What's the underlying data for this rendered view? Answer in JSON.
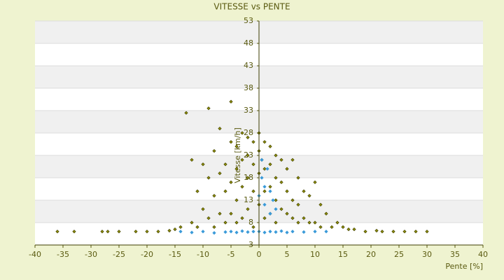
{
  "chart_data": {
    "type": "scatter",
    "title": "VITESSE vs PENTE",
    "x_label": "Pente [%]",
    "y_label": "Vitesse [km/h]",
    "xlim": [
      -40,
      40
    ],
    "xticks": [
      -40,
      -35,
      -30,
      -25,
      -20,
      -15,
      -10,
      -5,
      0,
      5,
      10,
      15,
      20,
      25,
      30,
      35,
      40
    ],
    "ylim": [
      3,
      53
    ],
    "yticks": [
      3,
      8,
      13,
      18,
      23,
      28,
      33,
      38,
      43,
      48,
      53
    ],
    "grid": true,
    "series": [
      {
        "color": "#8a8a00",
        "x": [
          -36,
          -33,
          -28,
          -27,
          -25,
          -22,
          -20,
          -18,
          -16,
          -14,
          -13,
          -12,
          -12,
          -11,
          -11,
          -10,
          -10,
          -9,
          -9,
          -9,
          -8,
          -8,
          -8,
          -7,
          -7,
          -7,
          -6,
          -6,
          -6,
          -5,
          -5,
          -5,
          -5,
          -4,
          -4,
          -4,
          -4,
          -3,
          -3,
          -3,
          -3,
          -2,
          -2,
          -2,
          -2,
          -1,
          -1,
          -1,
          -1,
          0,
          0,
          0,
          0,
          0.5,
          1,
          1,
          1,
          1,
          2,
          2,
          2,
          2,
          3,
          3,
          3,
          3,
          4,
          4,
          4,
          5,
          5,
          5,
          6,
          6,
          6,
          7,
          7,
          7,
          8,
          8,
          9,
          9,
          10,
          10,
          11,
          11,
          12,
          13,
          14,
          15,
          17,
          19,
          21,
          22,
          24,
          26,
          28,
          30,
          -15,
          16
        ],
        "values": [
          6,
          6,
          6,
          6,
          6,
          6,
          6,
          6,
          6.2,
          7,
          32.5,
          22,
          8,
          15,
          7,
          21,
          11,
          33.5,
          18,
          9,
          24,
          14,
          7,
          29,
          19,
          10,
          21,
          15,
          8,
          35,
          26,
          17,
          10,
          25,
          20,
          13,
          8,
          28,
          22,
          16,
          9,
          27,
          23,
          18,
          11,
          26,
          21,
          15,
          7,
          28,
          24,
          19,
          12,
          22,
          26,
          20,
          15,
          9,
          25,
          21,
          16,
          10,
          23,
          18,
          13,
          8,
          22,
          17,
          11,
          20,
          15,
          10,
          22,
          13,
          9,
          18,
          12,
          8,
          15,
          9,
          14,
          8,
          17,
          8,
          12,
          7,
          10,
          7,
          8,
          7,
          6.5,
          6,
          6.2,
          6,
          6,
          6,
          6,
          6,
          6.5,
          6.5
        ]
      },
      {
        "color": "#3a9ad9",
        "x": [
          -14,
          -12,
          -10,
          -8,
          -6,
          -5,
          -4,
          -3,
          -2,
          -1,
          0,
          1,
          2,
          3,
          4,
          5,
          6,
          8,
          10,
          12,
          0,
          0.5,
          1,
          1,
          1.5,
          2,
          2,
          2.5,
          3,
          0.5
        ],
        "values": [
          6,
          5.8,
          6,
          5.7,
          5.9,
          6,
          5.8,
          6.1,
          5.9,
          6,
          6,
          5.8,
          6,
          5.9,
          6.1,
          5.8,
          6,
          5.9,
          6,
          6,
          14,
          18,
          16,
          12,
          20,
          15,
          10,
          13,
          11,
          22
        ]
      }
    ]
  }
}
